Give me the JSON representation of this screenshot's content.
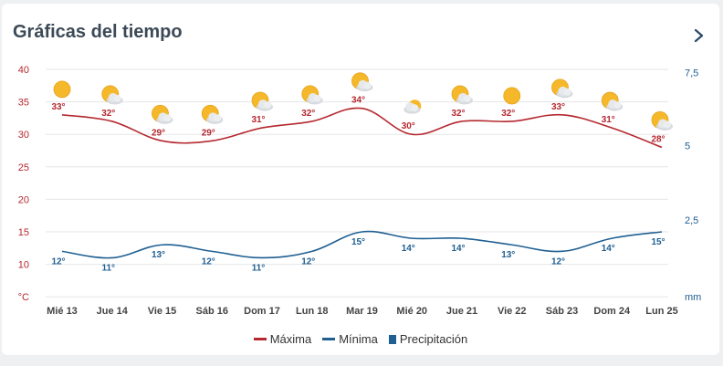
{
  "header": {
    "title": "Gráficas del tiempo",
    "next_icon": "chevron-right-icon"
  },
  "chart_data": {
    "type": "line",
    "categories": [
      "Mié 13",
      "Jue 14",
      "Vie 15",
      "Sáb 16",
      "Dom 17",
      "Lun 18",
      "Mar 19",
      "Mié 20",
      "Jue 21",
      "Vie 22",
      "Sáb 23",
      "Dom 24",
      "Lun 25"
    ],
    "series": [
      {
        "name": "Máxima",
        "color": "#b5282f",
        "values": [
          33,
          32,
          29,
          29,
          31,
          32,
          34,
          30,
          32,
          32,
          33,
          31,
          28
        ],
        "labels": [
          "33°",
          "32°",
          "29°",
          "29°",
          "31°",
          "32°",
          "34°",
          "30°",
          "32°",
          "32°",
          "33°",
          "31°",
          "28°"
        ]
      },
      {
        "name": "Mínima",
        "color": "#1f5f92",
        "values": [
          12,
          11,
          13,
          12,
          11,
          12,
          15,
          14,
          14,
          13,
          12,
          14,
          15
        ],
        "labels": [
          "12°",
          "11°",
          "13°",
          "12°",
          "11°",
          "12°",
          "15°",
          "14°",
          "14°",
          "13°",
          "12°",
          "14°",
          "15°"
        ]
      }
    ],
    "legend_extra": {
      "name": "Precipitación",
      "color": "#1f5f92"
    },
    "weather_icons": [
      "sun-icon",
      "partly-cloudy-icon",
      "partly-cloudy-icon",
      "partly-cloudy-icon",
      "partly-cloudy-icon",
      "partly-cloudy-icon",
      "partly-cloudy-icon",
      "cloudy-icon",
      "partly-cloudy-icon",
      "sun-icon",
      "partly-cloudy-icon",
      "partly-cloudy-icon",
      "partly-cloudy-icon"
    ],
    "y_left": {
      "min": 10,
      "max": 40,
      "ticks": [
        "40",
        "35",
        "30",
        "25",
        "20",
        "15",
        "10"
      ],
      "unit": "°C",
      "color": "#b5282f"
    },
    "y_right": {
      "min": 0,
      "max": 7.5,
      "ticks": [
        "7,5",
        "5",
        "2,5"
      ],
      "unit": "mm",
      "color": "#1f5f92"
    },
    "grid": true,
    "legend_position": "bottom-center"
  }
}
